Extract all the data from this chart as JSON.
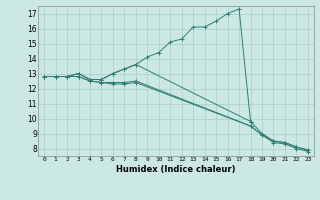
{
  "title": "",
  "xlabel": "Humidex (Indice chaleur)",
  "ylabel": "",
  "bg_color": "#cce8e4",
  "grid_color": "#aacccc",
  "line_color": "#2e7d6e",
  "xlim": [
    -0.5,
    23.5
  ],
  "ylim": [
    7.5,
    17.5
  ],
  "xticks": [
    0,
    1,
    2,
    3,
    4,
    5,
    6,
    7,
    8,
    9,
    10,
    11,
    12,
    13,
    14,
    15,
    16,
    17,
    18,
    19,
    20,
    21,
    22,
    23
  ],
  "yticks": [
    8,
    9,
    10,
    11,
    12,
    13,
    14,
    15,
    16,
    17
  ],
  "series": [
    {
      "x": [
        0,
        1,
        2,
        3,
        4,
        5,
        6,
        7,
        8,
        9,
        10,
        11,
        12,
        13,
        14,
        15,
        16,
        17,
        18
      ],
      "y": [
        12.8,
        12.8,
        12.8,
        13.0,
        12.6,
        12.6,
        13.0,
        13.3,
        13.6,
        14.1,
        14.4,
        15.1,
        15.3,
        16.1,
        16.1,
        16.5,
        17.0,
        17.3,
        9.8
      ]
    },
    {
      "x": [
        0,
        1,
        2,
        3,
        4,
        5,
        6,
        7,
        8,
        18,
        19,
        20,
        21,
        22,
        23
      ],
      "y": [
        12.8,
        12.8,
        12.8,
        13.0,
        12.6,
        12.6,
        13.0,
        13.3,
        13.6,
        9.8,
        9.0,
        8.5,
        8.4,
        8.1,
        7.9
      ]
    },
    {
      "x": [
        0,
        1,
        2,
        3,
        4,
        5,
        6,
        7,
        8,
        18,
        19,
        20,
        21,
        22,
        23
      ],
      "y": [
        12.8,
        12.8,
        12.8,
        12.8,
        12.5,
        12.4,
        12.4,
        12.4,
        12.5,
        9.5,
        8.9,
        8.5,
        8.4,
        8.1,
        7.9
      ]
    },
    {
      "x": [
        0,
        1,
        2,
        3,
        4,
        5,
        6,
        7,
        8,
        18,
        19,
        20,
        21,
        22,
        23
      ],
      "y": [
        12.8,
        12.8,
        12.8,
        12.8,
        12.5,
        12.4,
        12.3,
        12.3,
        12.4,
        9.5,
        8.9,
        8.4,
        8.3,
        8.0,
        7.8
      ]
    }
  ]
}
